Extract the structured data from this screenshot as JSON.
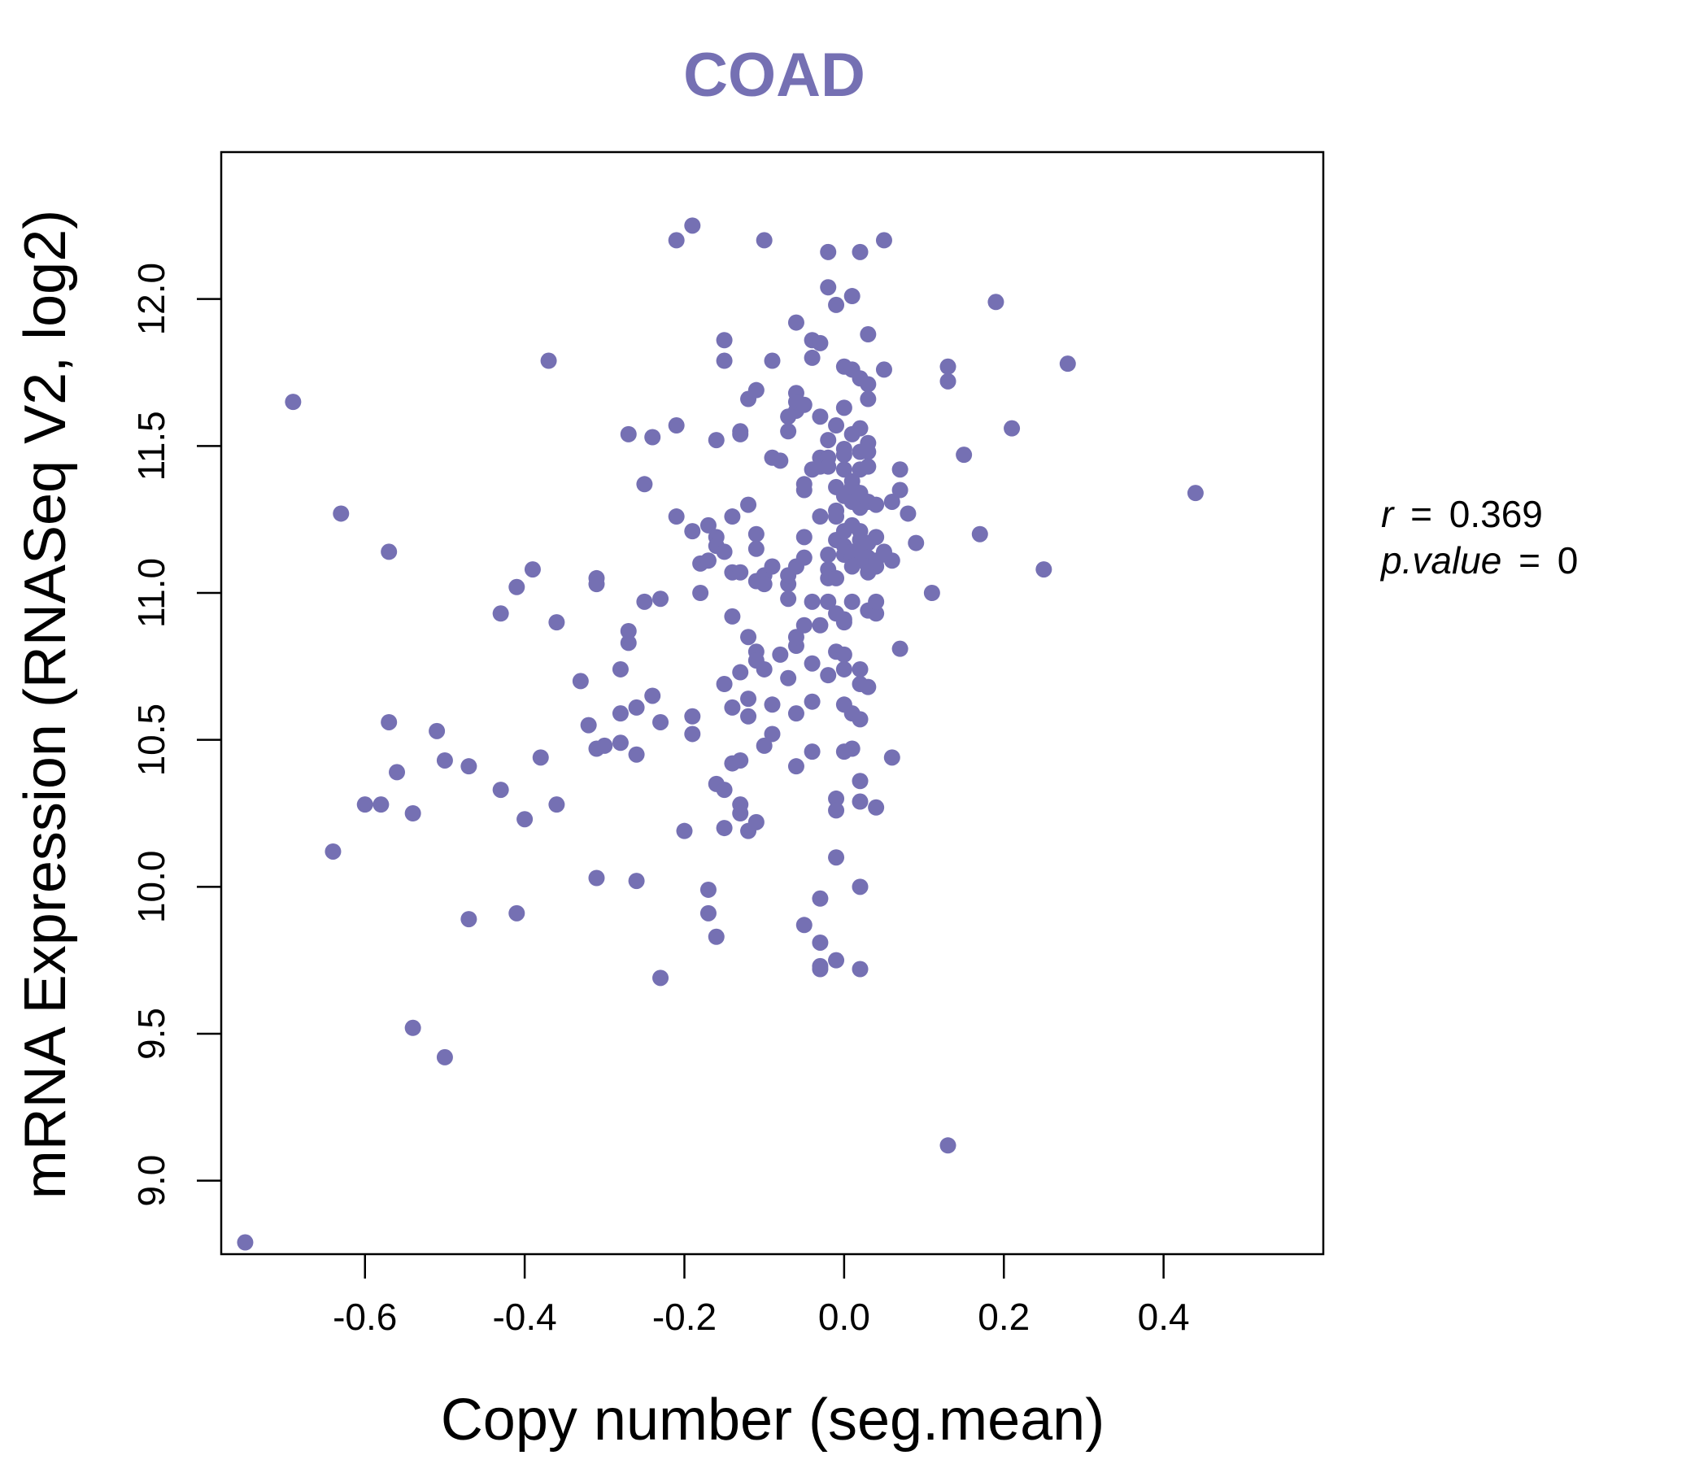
{
  "colors": {
    "accent": "#7570b3",
    "axis": "#000000",
    "background": "#ffffff"
  },
  "chart_data": {
    "type": "scatter",
    "title": "COAD",
    "xlabel": "Copy number (seg.mean)",
    "ylabel": "mRNA Expression (RNASeq V2, log2)",
    "xlim": [
      -0.78,
      0.6
    ],
    "ylim": [
      8.75,
      12.5
    ],
    "xticks": [
      "-0.6",
      "-0.4",
      "-0.2",
      "0.0",
      "0.2",
      "0.4"
    ],
    "yticks": [
      "9.0",
      "9.5",
      "10.0",
      "10.5",
      "11.0",
      "11.5",
      "12.0"
    ],
    "stats": {
      "r_label": "r",
      "r_value": "0.369",
      "p_label": "p.value",
      "p_value": "0",
      "eq": "="
    },
    "points": [
      [
        -0.75,
        8.79
      ],
      [
        -0.69,
        11.65
      ],
      [
        -0.64,
        10.12
      ],
      [
        -0.63,
        11.27
      ],
      [
        -0.6,
        10.28
      ],
      [
        -0.58,
        10.28
      ],
      [
        -0.57,
        10.56
      ],
      [
        -0.57,
        11.14
      ],
      [
        -0.56,
        10.39
      ],
      [
        -0.54,
        9.52
      ],
      [
        -0.54,
        10.25
      ],
      [
        -0.51,
        10.53
      ],
      [
        -0.5,
        10.43
      ],
      [
        -0.5,
        9.42
      ],
      [
        -0.47,
        10.41
      ],
      [
        -0.47,
        9.89
      ],
      [
        -0.43,
        10.33
      ],
      [
        -0.43,
        10.93
      ],
      [
        -0.41,
        11.02
      ],
      [
        -0.41,
        9.91
      ],
      [
        -0.4,
        10.23
      ],
      [
        -0.39,
        11.08
      ],
      [
        -0.38,
        10.44
      ],
      [
        -0.37,
        11.79
      ],
      [
        -0.36,
        10.9
      ],
      [
        -0.36,
        10.28
      ],
      [
        -0.33,
        10.7
      ],
      [
        -0.32,
        10.55
      ],
      [
        -0.31,
        11.05
      ],
      [
        -0.31,
        11.03
      ],
      [
        -0.31,
        10.47
      ],
      [
        -0.31,
        10.03
      ],
      [
        -0.3,
        10.48
      ],
      [
        -0.28,
        10.49
      ],
      [
        -0.28,
        10.59
      ],
      [
        -0.28,
        10.74
      ],
      [
        -0.27,
        10.83
      ],
      [
        -0.27,
        10.87
      ],
      [
        -0.27,
        11.54
      ],
      [
        -0.26,
        10.45
      ],
      [
        -0.26,
        10.61
      ],
      [
        -0.26,
        10.02
      ],
      [
        -0.25,
        10.97
      ],
      [
        -0.25,
        11.37
      ],
      [
        -0.24,
        11.53
      ],
      [
        -0.24,
        10.65
      ],
      [
        -0.23,
        10.56
      ],
      [
        -0.23,
        10.98
      ],
      [
        -0.23,
        9.69
      ],
      [
        -0.21,
        12.2
      ],
      [
        -0.21,
        11.26
      ],
      [
        -0.21,
        11.57
      ],
      [
        -0.2,
        10.19
      ],
      [
        -0.19,
        12.25
      ],
      [
        -0.19,
        11.21
      ],
      [
        -0.19,
        10.58
      ],
      [
        -0.19,
        10.52
      ],
      [
        -0.18,
        11.1
      ],
      [
        -0.18,
        11.0
      ],
      [
        -0.17,
        9.99
      ],
      [
        -0.17,
        9.91
      ],
      [
        -0.17,
        11.23
      ],
      [
        -0.17,
        11.11
      ],
      [
        -0.16,
        11.19
      ],
      [
        -0.16,
        11.16
      ],
      [
        -0.16,
        11.52
      ],
      [
        -0.16,
        10.35
      ],
      [
        -0.16,
        9.83
      ],
      [
        -0.15,
        10.33
      ],
      [
        -0.15,
        10.2
      ],
      [
        -0.15,
        10.69
      ],
      [
        -0.15,
        11.86
      ],
      [
        -0.15,
        11.79
      ],
      [
        -0.15,
        11.14
      ],
      [
        -0.14,
        11.26
      ],
      [
        -0.14,
        10.42
      ],
      [
        -0.14,
        11.07
      ],
      [
        -0.14,
        10.92
      ],
      [
        -0.14,
        10.61
      ],
      [
        -0.13,
        10.43
      ],
      [
        -0.13,
        10.28
      ],
      [
        -0.13,
        10.25
      ],
      [
        -0.13,
        10.73
      ],
      [
        -0.13,
        11.07
      ],
      [
        -0.13,
        11.55
      ],
      [
        -0.13,
        11.54
      ],
      [
        -0.12,
        10.19
      ],
      [
        -0.12,
        11.66
      ],
      [
        -0.12,
        11.3
      ],
      [
        -0.12,
        10.85
      ],
      [
        -0.12,
        10.64
      ],
      [
        -0.12,
        10.58
      ],
      [
        -0.11,
        10.8
      ],
      [
        -0.11,
        11.04
      ],
      [
        -0.11,
        10.22
      ],
      [
        -0.11,
        11.69
      ],
      [
        -0.11,
        11.2
      ],
      [
        -0.11,
        11.15
      ],
      [
        -0.11,
        10.77
      ],
      [
        -0.1,
        10.48
      ],
      [
        -0.1,
        10.74
      ],
      [
        -0.1,
        11.06
      ],
      [
        -0.1,
        12.2
      ],
      [
        -0.1,
        11.03
      ],
      [
        -0.09,
        11.09
      ],
      [
        -0.09,
        11.79
      ],
      [
        -0.09,
        11.46
      ],
      [
        -0.09,
        10.62
      ],
      [
        -0.09,
        10.52
      ],
      [
        -0.08,
        10.79
      ],
      [
        -0.08,
        11.45
      ],
      [
        -0.07,
        11.55
      ],
      [
        -0.07,
        10.71
      ],
      [
        -0.07,
        11.03
      ],
      [
        -0.07,
        10.98
      ],
      [
        -0.07,
        11.06
      ],
      [
        -0.07,
        11.6
      ],
      [
        -0.06,
        11.62
      ],
      [
        -0.06,
        11.68
      ],
      [
        -0.06,
        11.92
      ],
      [
        -0.06,
        10.82
      ],
      [
        -0.06,
        10.85
      ],
      [
        -0.06,
        11.65
      ],
      [
        -0.06,
        10.41
      ],
      [
        -0.06,
        10.59
      ],
      [
        -0.06,
        11.09
      ],
      [
        -0.05,
        11.35
      ],
      [
        -0.05,
        11.37
      ],
      [
        -0.05,
        11.12
      ],
      [
        -0.05,
        11.64
      ],
      [
        -0.05,
        10.89
      ],
      [
        -0.05,
        9.87
      ],
      [
        -0.05,
        11.19
      ],
      [
        -0.04,
        11.42
      ],
      [
        -0.04,
        11.8
      ],
      [
        -0.04,
        10.46
      ],
      [
        -0.04,
        10.97
      ],
      [
        -0.04,
        10.63
      ],
      [
        -0.04,
        11.86
      ],
      [
        -0.04,
        10.76
      ],
      [
        -0.03,
        9.81
      ],
      [
        -0.03,
        10.89
      ],
      [
        -0.03,
        9.73
      ],
      [
        -0.03,
        9.72
      ],
      [
        -0.03,
        9.96
      ],
      [
        -0.03,
        11.6
      ],
      [
        -0.03,
        11.46
      ],
      [
        -0.03,
        11.85
      ],
      [
        -0.03,
        11.43
      ],
      [
        -0.03,
        11.26
      ],
      [
        -0.02,
        11.08
      ],
      [
        -0.02,
        11.05
      ],
      [
        -0.02,
        11.13
      ],
      [
        -0.02,
        10.97
      ],
      [
        -0.02,
        11.46
      ],
      [
        -0.02,
        11.43
      ],
      [
        -0.02,
        12.16
      ],
      [
        -0.02,
        12.04
      ],
      [
        -0.02,
        11.52
      ],
      [
        -0.02,
        10.72
      ],
      [
        -0.01,
        11.28
      ],
      [
        -0.01,
        11.18
      ],
      [
        -0.01,
        11.26
      ],
      [
        -0.01,
        10.93
      ],
      [
        -0.01,
        11.57
      ],
      [
        -0.01,
        10.3
      ],
      [
        -0.01,
        10.26
      ],
      [
        -0.01,
        9.75
      ],
      [
        -0.01,
        11.98
      ],
      [
        -0.01,
        11.05
      ],
      [
        -0.01,
        10.1
      ],
      [
        -0.01,
        11.36
      ],
      [
        -0.01,
        10.8
      ],
      [
        0.0,
        11.42
      ],
      [
        0.0,
        11.13
      ],
      [
        0.0,
        11.33
      ],
      [
        0.0,
        10.74
      ],
      [
        0.0,
        10.62
      ],
      [
        0.0,
        11.49
      ],
      [
        0.0,
        11.16
      ],
      [
        0.0,
        11.47
      ],
      [
        0.0,
        11.63
      ],
      [
        0.0,
        11.21
      ],
      [
        0.0,
        10.9
      ],
      [
        0.0,
        10.46
      ],
      [
        0.0,
        10.79
      ],
      [
        0.0,
        10.91
      ],
      [
        0.0,
        11.77
      ],
      [
        0.01,
        12.01
      ],
      [
        0.01,
        11.36
      ],
      [
        0.01,
        11.31
      ],
      [
        0.01,
        10.59
      ],
      [
        0.01,
        11.12
      ],
      [
        0.01,
        11.14
      ],
      [
        0.01,
        11.54
      ],
      [
        0.01,
        10.97
      ],
      [
        0.01,
        10.47
      ],
      [
        0.01,
        11.23
      ],
      [
        0.01,
        11.38
      ],
      [
        0.01,
        11.09
      ],
      [
        0.01,
        11.76
      ],
      [
        0.02,
        11.48
      ],
      [
        0.02,
        11.18
      ],
      [
        0.02,
        11.12
      ],
      [
        0.02,
        11.21
      ],
      [
        0.02,
        11.29
      ],
      [
        0.02,
        11.42
      ],
      [
        0.02,
        10.57
      ],
      [
        0.02,
        10.74
      ],
      [
        0.02,
        10.36
      ],
      [
        0.02,
        10.29
      ],
      [
        0.02,
        10.0
      ],
      [
        0.02,
        12.16
      ],
      [
        0.02,
        11.73
      ],
      [
        0.02,
        11.34
      ],
      [
        0.02,
        11.14
      ],
      [
        0.02,
        9.72
      ],
      [
        0.02,
        10.69
      ],
      [
        0.02,
        11.56
      ],
      [
        0.03,
        11.31
      ],
      [
        0.03,
        11.17
      ],
      [
        0.03,
        10.94
      ],
      [
        0.03,
        11.12
      ],
      [
        0.03,
        11.09
      ],
      [
        0.03,
        11.51
      ],
      [
        0.03,
        11.48
      ],
      [
        0.03,
        11.43
      ],
      [
        0.03,
        11.07
      ],
      [
        0.03,
        10.68
      ],
      [
        0.03,
        11.88
      ],
      [
        0.03,
        11.71
      ],
      [
        0.03,
        11.66
      ],
      [
        0.04,
        11.19
      ],
      [
        0.04,
        11.11
      ],
      [
        0.04,
        11.09
      ],
      [
        0.04,
        10.93
      ],
      [
        0.04,
        10.27
      ],
      [
        0.04,
        10.97
      ],
      [
        0.04,
        11.3
      ],
      [
        0.05,
        12.2
      ],
      [
        0.05,
        11.14
      ],
      [
        0.05,
        11.76
      ],
      [
        0.06,
        10.44
      ],
      [
        0.06,
        11.11
      ],
      [
        0.06,
        11.31
      ],
      [
        0.07,
        11.35
      ],
      [
        0.07,
        11.42
      ],
      [
        0.07,
        10.81
      ],
      [
        0.08,
        11.27
      ],
      [
        0.09,
        11.17
      ],
      [
        0.11,
        11.0
      ],
      [
        0.13,
        11.77
      ],
      [
        0.13,
        11.72
      ],
      [
        0.13,
        9.12
      ],
      [
        0.15,
        11.47
      ],
      [
        0.17,
        11.2
      ],
      [
        0.19,
        11.99
      ],
      [
        0.21,
        11.56
      ],
      [
        0.25,
        11.08
      ],
      [
        0.28,
        11.78
      ],
      [
        0.44,
        11.34
      ]
    ]
  }
}
